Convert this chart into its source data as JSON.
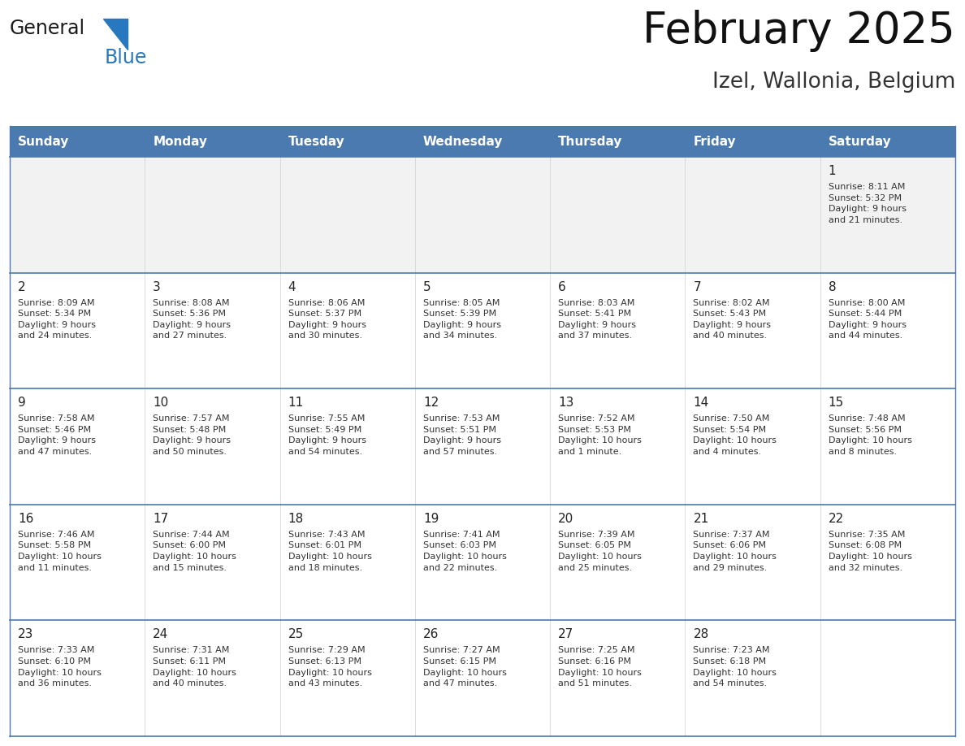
{
  "title": "February 2025",
  "subtitle": "Izel, Wallonia, Belgium",
  "days_of_week": [
    "Sunday",
    "Monday",
    "Tuesday",
    "Wednesday",
    "Thursday",
    "Friday",
    "Saturday"
  ],
  "header_bg": "#4a7aaf",
  "header_text_color": "#ffffff",
  "cell_bg": "#ffffff",
  "first_row_bg": "#f2f2f2",
  "cell_text_color": "#333333",
  "day_num_color": "#222222",
  "separator_color": "#4a7aaf",
  "border_color": "#4a7aaf",
  "logo_black": "#1a1a1a",
  "logo_blue": "#2878c0",
  "logo_triangle": "#2878c0",
  "calendar_data": [
    [
      null,
      null,
      null,
      null,
      null,
      null,
      {
        "day": "1",
        "sunrise": "8:11 AM",
        "sunset": "5:32 PM",
        "daylight": "9 hours\nand 21 minutes."
      }
    ],
    [
      {
        "day": "2",
        "sunrise": "8:09 AM",
        "sunset": "5:34 PM",
        "daylight": "9 hours\nand 24 minutes."
      },
      {
        "day": "3",
        "sunrise": "8:08 AM",
        "sunset": "5:36 PM",
        "daylight": "9 hours\nand 27 minutes."
      },
      {
        "day": "4",
        "sunrise": "8:06 AM",
        "sunset": "5:37 PM",
        "daylight": "9 hours\nand 30 minutes."
      },
      {
        "day": "5",
        "sunrise": "8:05 AM",
        "sunset": "5:39 PM",
        "daylight": "9 hours\nand 34 minutes."
      },
      {
        "day": "6",
        "sunrise": "8:03 AM",
        "sunset": "5:41 PM",
        "daylight": "9 hours\nand 37 minutes."
      },
      {
        "day": "7",
        "sunrise": "8:02 AM",
        "sunset": "5:43 PM",
        "daylight": "9 hours\nand 40 minutes."
      },
      {
        "day": "8",
        "sunrise": "8:00 AM",
        "sunset": "5:44 PM",
        "daylight": "9 hours\nand 44 minutes."
      }
    ],
    [
      {
        "day": "9",
        "sunrise": "7:58 AM",
        "sunset": "5:46 PM",
        "daylight": "9 hours\nand 47 minutes."
      },
      {
        "day": "10",
        "sunrise": "7:57 AM",
        "sunset": "5:48 PM",
        "daylight": "9 hours\nand 50 minutes."
      },
      {
        "day": "11",
        "sunrise": "7:55 AM",
        "sunset": "5:49 PM",
        "daylight": "9 hours\nand 54 minutes."
      },
      {
        "day": "12",
        "sunrise": "7:53 AM",
        "sunset": "5:51 PM",
        "daylight": "9 hours\nand 57 minutes."
      },
      {
        "day": "13",
        "sunrise": "7:52 AM",
        "sunset": "5:53 PM",
        "daylight": "10 hours\nand 1 minute."
      },
      {
        "day": "14",
        "sunrise": "7:50 AM",
        "sunset": "5:54 PM",
        "daylight": "10 hours\nand 4 minutes."
      },
      {
        "day": "15",
        "sunrise": "7:48 AM",
        "sunset": "5:56 PM",
        "daylight": "10 hours\nand 8 minutes."
      }
    ],
    [
      {
        "day": "16",
        "sunrise": "7:46 AM",
        "sunset": "5:58 PM",
        "daylight": "10 hours\nand 11 minutes."
      },
      {
        "day": "17",
        "sunrise": "7:44 AM",
        "sunset": "6:00 PM",
        "daylight": "10 hours\nand 15 minutes."
      },
      {
        "day": "18",
        "sunrise": "7:43 AM",
        "sunset": "6:01 PM",
        "daylight": "10 hours\nand 18 minutes."
      },
      {
        "day": "19",
        "sunrise": "7:41 AM",
        "sunset": "6:03 PM",
        "daylight": "10 hours\nand 22 minutes."
      },
      {
        "day": "20",
        "sunrise": "7:39 AM",
        "sunset": "6:05 PM",
        "daylight": "10 hours\nand 25 minutes."
      },
      {
        "day": "21",
        "sunrise": "7:37 AM",
        "sunset": "6:06 PM",
        "daylight": "10 hours\nand 29 minutes."
      },
      {
        "day": "22",
        "sunrise": "7:35 AM",
        "sunset": "6:08 PM",
        "daylight": "10 hours\nand 32 minutes."
      }
    ],
    [
      {
        "day": "23",
        "sunrise": "7:33 AM",
        "sunset": "6:10 PM",
        "daylight": "10 hours\nand 36 minutes."
      },
      {
        "day": "24",
        "sunrise": "7:31 AM",
        "sunset": "6:11 PM",
        "daylight": "10 hours\nand 40 minutes."
      },
      {
        "day": "25",
        "sunrise": "7:29 AM",
        "sunset": "6:13 PM",
        "daylight": "10 hours\nand 43 minutes."
      },
      {
        "day": "26",
        "sunrise": "7:27 AM",
        "sunset": "6:15 PM",
        "daylight": "10 hours\nand 47 minutes."
      },
      {
        "day": "27",
        "sunrise": "7:25 AM",
        "sunset": "6:16 PM",
        "daylight": "10 hours\nand 51 minutes."
      },
      {
        "day": "28",
        "sunrise": "7:23 AM",
        "sunset": "6:18 PM",
        "daylight": "10 hours\nand 54 minutes."
      },
      null
    ]
  ]
}
